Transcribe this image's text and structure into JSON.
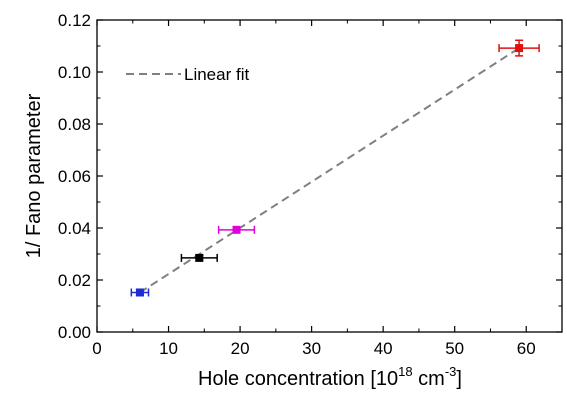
{
  "chart_data": {
    "type": "scatter",
    "xlabel_main": "Hole concentration [10",
    "xlabel_exp1": "18",
    "xlabel_unit": " cm",
    "xlabel_exp2": "-3",
    "xlabel_close": "]",
    "ylabel": "1/ Fano parameter",
    "xlim": [
      0,
      65
    ],
    "ylim": [
      0.0,
      0.12
    ],
    "x_ticks": [
      0,
      10,
      20,
      30,
      40,
      50,
      60
    ],
    "x_tick_labels": [
      "0",
      "10",
      "20",
      "30",
      "40",
      "50",
      "60"
    ],
    "y_ticks": [
      0.0,
      0.02,
      0.04,
      0.06,
      0.08,
      0.1,
      0.12
    ],
    "y_tick_labels": [
      "0.00",
      "0.02",
      "0.04",
      "0.06",
      "0.08",
      "0.10",
      "0.12"
    ],
    "grid": false,
    "legend_position": "top-left",
    "points": [
      {
        "x": 6.0,
        "y": 0.0152,
        "xerr": 1.2,
        "yerr": 0.0012,
        "color": "#1f2bd6"
      },
      {
        "x": 14.3,
        "y": 0.0285,
        "xerr": 2.5,
        "yerr": 0.001,
        "color": "#000000"
      },
      {
        "x": 19.5,
        "y": 0.0393,
        "xerr": 2.5,
        "yerr": 0.001,
        "color": "#e000e0"
      },
      {
        "x": 59.0,
        "y": 0.1092,
        "xerr": 2.8,
        "yerr": 0.003,
        "color": "#e01010"
      }
    ],
    "fit": {
      "name": "Linear fit",
      "x": [
        6.0,
        59.0
      ],
      "y": [
        0.0152,
        0.1092
      ],
      "color": "#808080",
      "style": "dashed"
    }
  }
}
